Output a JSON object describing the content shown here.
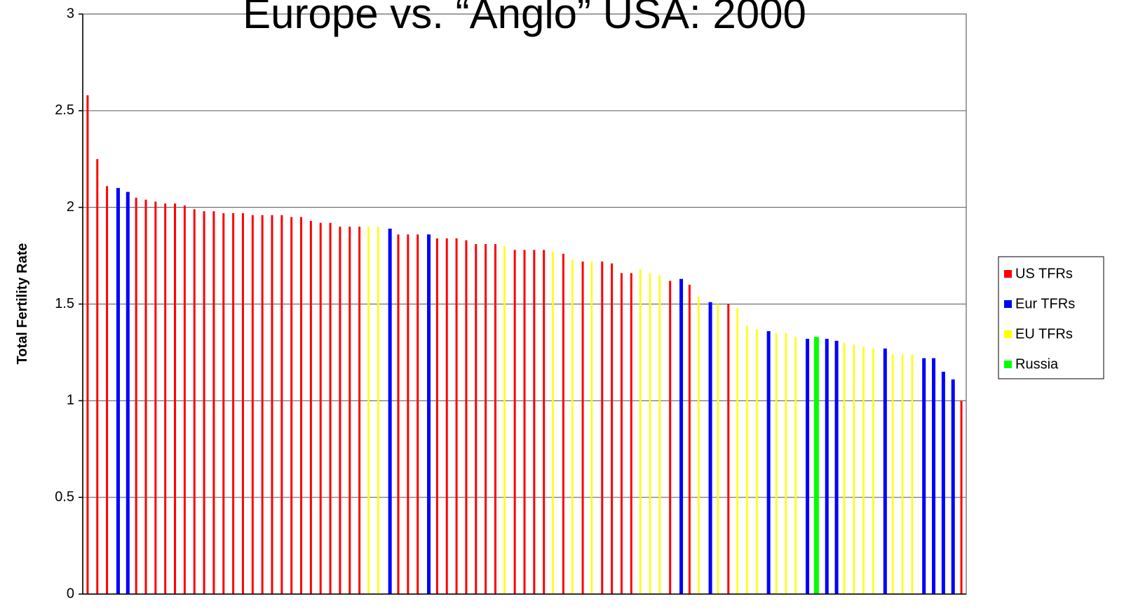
{
  "chart_data": {
    "type": "bar",
    "title": "Europe vs. “Anglo” USA: 2000",
    "y_label": "Total Fertility Rate",
    "categories": [
      null,
      null,
      null,
      null,
      null,
      null,
      null,
      null,
      null,
      null,
      null,
      null,
      null,
      null,
      null,
      null,
      null,
      null,
      null,
      null,
      null,
      null,
      null,
      null,
      null,
      null,
      null,
      null,
      null,
      null,
      null,
      null,
      null,
      null,
      null,
      null,
      null,
      null,
      null,
      null,
      null,
      null,
      null,
      null,
      null,
      null,
      null,
      null,
      null,
      null,
      null,
      null,
      null,
      null,
      null,
      null,
      null,
      null,
      null,
      null,
      null,
      null,
      null,
      null,
      null,
      null,
      null,
      null,
      null,
      null,
      null,
      null,
      null,
      null,
      null,
      null,
      null,
      null,
      null,
      null,
      null,
      null,
      null,
      null,
      null,
      null,
      null,
      null,
      null,
      null,
      null
    ],
    "series": [
      {
        "name": "US TFRs",
        "color": "#ff0000",
        "values": [
          2.58,
          2.25,
          2.11,
          null,
          null,
          2.05,
          2.04,
          2.03,
          2.02,
          2.02,
          2.01,
          1.99,
          1.98,
          1.98,
          1.97,
          1.97,
          1.97,
          1.96,
          1.96,
          1.96,
          1.96,
          1.95,
          1.95,
          1.93,
          1.92,
          1.92,
          1.9,
          1.9,
          1.9,
          null,
          null,
          null,
          1.86,
          1.86,
          1.86,
          null,
          1.84,
          1.84,
          1.84,
          1.83,
          1.81,
          1.81,
          1.81,
          null,
          1.78,
          1.78,
          1.78,
          1.78,
          null,
          1.76,
          null,
          1.72,
          null,
          1.72,
          1.71,
          1.66,
          1.66,
          null,
          null,
          null,
          1.62,
          null,
          1.6,
          null,
          null,
          null,
          1.5,
          null,
          null,
          null,
          null,
          null,
          null,
          null,
          null,
          null,
          null,
          null,
          null,
          null,
          null,
          null,
          null,
          null,
          null,
          null,
          null,
          null,
          null,
          null,
          1
        ]
      },
      {
        "name": "Eur TFRs",
        "color": "#0000ff",
        "values": [
          null,
          null,
          null,
          2.1,
          2.08,
          null,
          null,
          null,
          null,
          null,
          null,
          null,
          null,
          null,
          null,
          null,
          null,
          null,
          null,
          null,
          null,
          null,
          null,
          null,
          null,
          null,
          null,
          null,
          null,
          null,
          null,
          1.89,
          null,
          null,
          null,
          1.86,
          null,
          null,
          null,
          null,
          null,
          null,
          null,
          null,
          null,
          null,
          null,
          null,
          null,
          null,
          null,
          null,
          null,
          null,
          null,
          null,
          null,
          null,
          null,
          null,
          null,
          1.63,
          null,
          null,
          1.51,
          null,
          null,
          null,
          null,
          null,
          1.36,
          null,
          null,
          null,
          1.32,
          null,
          1.32,
          1.31,
          null,
          null,
          null,
          null,
          1.27,
          null,
          null,
          null,
          1.22,
          1.22,
          1.15,
          1.11,
          null
        ]
      },
      {
        "name": "EU TFRs",
        "color": "#ffff00",
        "values": [
          null,
          null,
          null,
          null,
          null,
          null,
          null,
          null,
          null,
          null,
          null,
          null,
          null,
          null,
          null,
          null,
          null,
          null,
          null,
          null,
          null,
          null,
          null,
          null,
          null,
          null,
          null,
          null,
          null,
          1.9,
          1.9,
          null,
          null,
          null,
          null,
          null,
          null,
          null,
          null,
          null,
          null,
          null,
          null,
          1.8,
          null,
          null,
          null,
          null,
          1.77,
          null,
          1.73,
          null,
          1.72,
          null,
          null,
          null,
          null,
          1.68,
          1.66,
          1.65,
          null,
          null,
          null,
          1.54,
          null,
          1.5,
          null,
          1.48,
          1.39,
          1.37,
          null,
          1.35,
          1.35,
          1.33,
          null,
          null,
          null,
          null,
          1.3,
          1.29,
          1.28,
          1.27,
          null,
          1.24,
          1.24,
          1.24,
          null,
          null,
          null,
          null,
          null
        ]
      },
      {
        "name": "Russia",
        "color": "#00ff00",
        "values": [
          null,
          null,
          null,
          null,
          null,
          null,
          null,
          null,
          null,
          null,
          null,
          null,
          null,
          null,
          null,
          null,
          null,
          null,
          null,
          null,
          null,
          null,
          null,
          null,
          null,
          null,
          null,
          null,
          null,
          null,
          null,
          null,
          null,
          null,
          null,
          null,
          null,
          null,
          null,
          null,
          null,
          null,
          null,
          null,
          null,
          null,
          null,
          null,
          null,
          null,
          null,
          null,
          null,
          null,
          null,
          null,
          null,
          null,
          null,
          null,
          null,
          null,
          null,
          null,
          null,
          null,
          null,
          null,
          null,
          null,
          null,
          null,
          null,
          null,
          null,
          1.33,
          null,
          null,
          null,
          null,
          null,
          null,
          null,
          null,
          null,
          null,
          null,
          null,
          null,
          null,
          null
        ]
      }
    ],
    "ylim": [
      0,
      3
    ],
    "yticks": [
      0,
      0.5,
      1,
      1.5,
      2,
      2.5,
      3
    ],
    "grid": true,
    "legend": "right"
  }
}
